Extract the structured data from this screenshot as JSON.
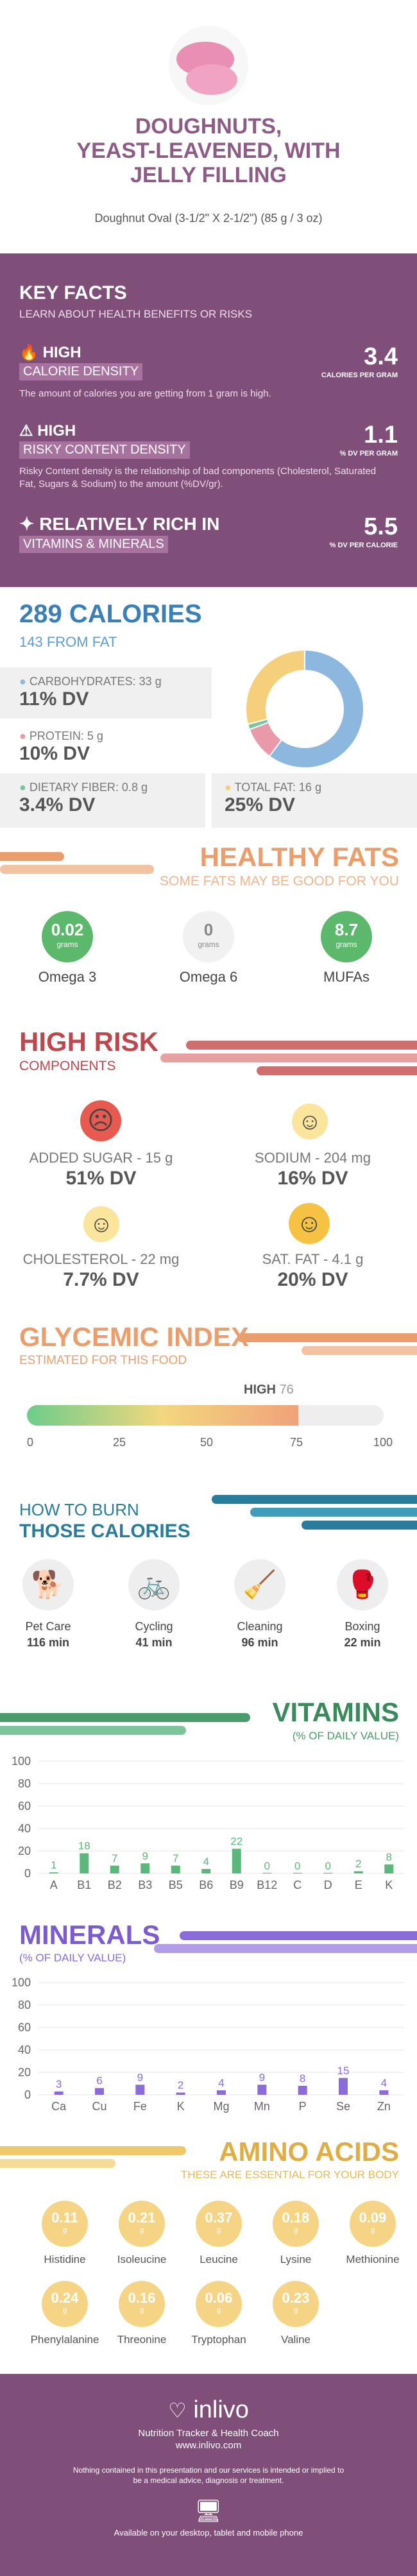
{
  "header": {
    "title_lines": [
      "DOUGHNUTS,",
      "YEAST-LEAVENED, WITH",
      "JELLY FILLING"
    ],
    "serving": "Doughnut Oval (3-1/2\" X 2-1/2\") (85 g / 3 oz)"
  },
  "key_facts": {
    "title": "KEY FACTS",
    "subtitle": "LEARN ABOUT HEALTH BENEFITS OR RISKS",
    "items": [
      {
        "badge": "HIGH",
        "label": "CALORIE DENSITY",
        "desc": "The amount of calories you are getting from 1 gram is high.",
        "value": "3.4",
        "unit": "CALORIES PER GRAM"
      },
      {
        "badge": "HIGH",
        "label": "RISKY CONTENT DENSITY",
        "desc": "Risky Content density is the relationship of bad components (Cholesterol, Saturated Fat, Sugars & Sodium) to the amount (%DV/gr).",
        "value": "1.1",
        "unit": "% DV PER GRAM"
      },
      {
        "badge": "RELATIVELY RICH  IN",
        "label": "VITAMINS & MINERALS",
        "desc": "",
        "value": "5.5",
        "unit": "% DV PER CALORIE"
      }
    ]
  },
  "calories": {
    "title": "289 CALORIES",
    "from_fat": "143 FROM FAT",
    "items": [
      {
        "label": "CARBOHYDRATES: 33 g",
        "dv": "11% DV",
        "color": "#8cb8df"
      },
      {
        "label": "PROTEIN: 5 g",
        "dv": "10% DV",
        "color": "#e89aa8"
      },
      {
        "label": "DIETARY FIBER: 0.8 g",
        "dv": "3.4% DV",
        "color": "#7cc4a0"
      },
      {
        "label": "TOTAL FAT: 16 g",
        "dv": "25% DV",
        "color": "#f5cf7b"
      }
    ]
  },
  "chart_data": [
    {
      "type": "pie",
      "values": [
        33,
        5,
        0.8,
        16
      ],
      "categories": [
        "CARBOHYDRATES",
        "PROTEIN",
        "DIETARY FIBER",
        "TOTAL FAT"
      ]
    },
    {
      "type": "bar",
      "title": "VITAMINS",
      "subtitle": "(% OF DAILY VALUE)",
      "categories": [
        "A",
        "B1",
        "B2",
        "B3",
        "B5",
        "B6",
        "B9",
        "B12",
        "C",
        "D",
        "E",
        "K"
      ],
      "values": [
        1,
        18,
        7,
        9,
        7,
        4,
        22,
        0,
        0,
        0,
        2,
        8
      ],
      "ylim": [
        0,
        100
      ],
      "yticks": [
        0,
        20,
        40,
        60,
        80,
        100
      ]
    },
    {
      "type": "bar",
      "title": "MINERALS",
      "subtitle": "(% OF DAILY VALUE)",
      "categories": [
        "Ca",
        "Cu",
        "Fe",
        "K",
        "Mg",
        "Mn",
        "P",
        "Se",
        "Zn"
      ],
      "values": [
        3,
        6,
        9,
        2,
        4,
        9,
        8,
        15,
        4
      ],
      "ylim": [
        0,
        100
      ],
      "yticks": [
        0,
        20,
        40,
        60,
        80,
        100
      ]
    }
  ],
  "healthy_fats": {
    "title": "HEALTHY FATS",
    "subtitle": "SOME FATS MAY BE GOOD FOR YOU",
    "items": [
      {
        "value": "0.02",
        "unit": "grams",
        "label": "Omega 3"
      },
      {
        "value": "0",
        "unit": "grams",
        "label": "Omega 6"
      },
      {
        "value": "8.7",
        "unit": "grams",
        "label": "MUFAs"
      }
    ]
  },
  "high_risk": {
    "title": "HIGH RISK",
    "subtitle": "COMPONENTS",
    "items": [
      {
        "label": "ADDED SUGAR - 15 g",
        "dv": "51% DV"
      },
      {
        "label": "SODIUM - 204 mg",
        "dv": "16% DV"
      },
      {
        "label": "CHOLESTEROL - 22 mg",
        "dv": "7.7% DV"
      },
      {
        "label": "SAT. FAT - 4.1 g",
        "dv": "20% DV"
      }
    ]
  },
  "glycemic": {
    "title": "GLYCEMIC INDEX",
    "subtitle": "ESTIMATED FOR THIS FOOD",
    "level": "HIGH",
    "value": "76",
    "ticks": [
      "0",
      "25",
      "50",
      "75",
      "100"
    ]
  },
  "burn": {
    "title1": "HOW TO BURN",
    "title2": "THOSE CALORIES",
    "items": [
      {
        "label": "Pet Care",
        "time": "116 min"
      },
      {
        "label": "Cycling",
        "time": "41 min"
      },
      {
        "label": "Cleaning",
        "time": "96 min"
      },
      {
        "label": "Boxing",
        "time": "22 min"
      }
    ]
  },
  "amino": {
    "title": "AMINO ACIDS",
    "subtitle": "THESE ARE ESSENTIAL FOR YOUR BODY",
    "items": [
      {
        "value": "0.11",
        "label": "Histidine"
      },
      {
        "value": "0.21",
        "label": "Isoleucine"
      },
      {
        "value": "0.37",
        "label": "Leucine"
      },
      {
        "value": "0.18",
        "label": "Lysine"
      },
      {
        "value": "0.09",
        "label": "Methionine"
      },
      {
        "value": "0.24",
        "label": "Phenylalanine"
      },
      {
        "value": "0.16",
        "label": "Threonine"
      },
      {
        "value": "0.06",
        "label": "Tryptophan"
      },
      {
        "value": "0.23",
        "label": "Valine"
      }
    ],
    "unit": "g"
  },
  "footer": {
    "brand": "inlivo",
    "tagline": "Nutrition Tracker & Health Coach",
    "url": "www.inlivo.com",
    "disclaimer": "Nothing contained in this presentation and our services is intended or implied to be a medical advice, diagnosis or treatment.",
    "available": "Available on your desktop, tablet and mobile phone"
  }
}
